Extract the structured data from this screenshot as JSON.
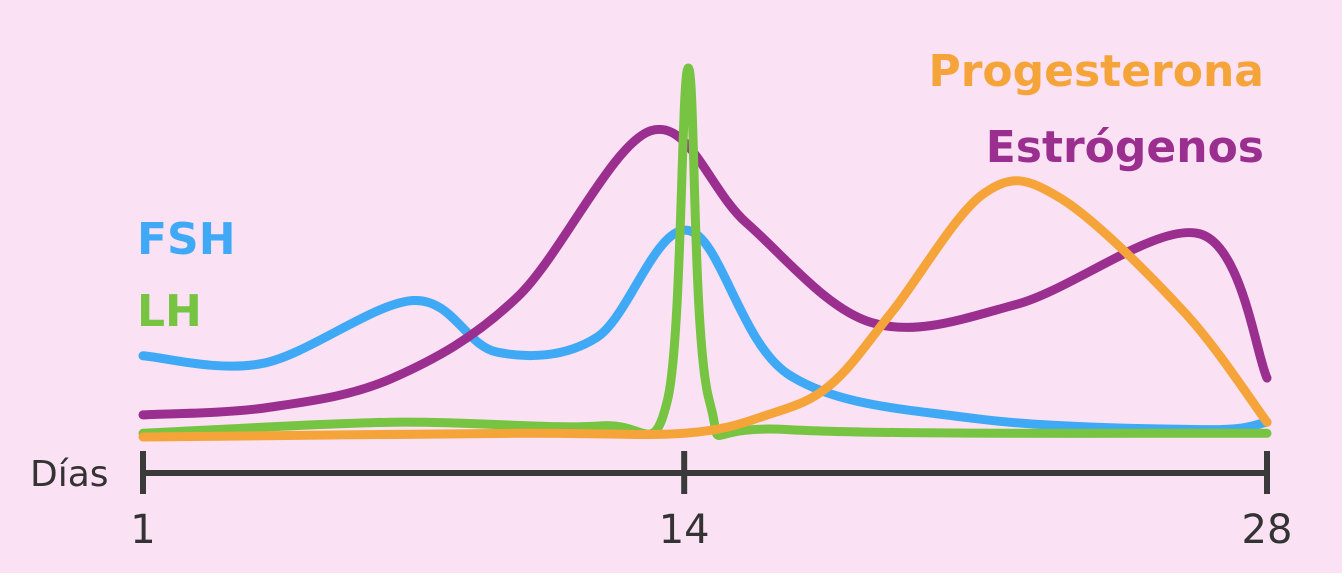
{
  "chart_data": {
    "type": "line",
    "xlabel": "Días",
    "xlim": [
      1,
      28
    ],
    "xticks": [
      1,
      14,
      28
    ],
    "ylim": [
      0,
      100
    ],
    "grid": false,
    "series": [
      {
        "name": "FSH",
        "color": "#3fa9f5",
        "points": [
          [
            1,
            22
          ],
          [
            3.9,
            20
          ],
          [
            7.5,
            37
          ],
          [
            9.5,
            23
          ],
          [
            11.9,
            27
          ],
          [
            14.1,
            56
          ],
          [
            16.5,
            17
          ],
          [
            21,
            5
          ],
          [
            26.5,
            2
          ],
          [
            28,
            4
          ]
        ]
      },
      {
        "name": "LH",
        "color": "#76c442",
        "points": [
          [
            1,
            1
          ],
          [
            7,
            4
          ],
          [
            12,
            3
          ],
          [
            13.6,
            10
          ],
          [
            14.1,
            100
          ],
          [
            14.6,
            10
          ],
          [
            16.5,
            2
          ],
          [
            28,
            1
          ]
        ]
      },
      {
        "name": "Estrógenos",
        "color": "#9b2f8f",
        "points": [
          [
            1,
            6
          ],
          [
            4,
            8
          ],
          [
            7,
            16
          ],
          [
            10,
            38
          ],
          [
            13.2,
            83
          ],
          [
            15.5,
            58
          ],
          [
            18.5,
            31
          ],
          [
            22,
            36
          ],
          [
            26.4,
            55
          ],
          [
            28,
            16
          ]
        ]
      },
      {
        "name": "Progesterona",
        "color": "#f5a43a",
        "points": [
          [
            1,
            0
          ],
          [
            10,
            1
          ],
          [
            14,
            1
          ],
          [
            16,
            6
          ],
          [
            17.5,
            14
          ],
          [
            19,
            34
          ],
          [
            21.2,
            66
          ],
          [
            23,
            65
          ],
          [
            26,
            34
          ],
          [
            28,
            4
          ]
        ]
      }
    ]
  }
}
